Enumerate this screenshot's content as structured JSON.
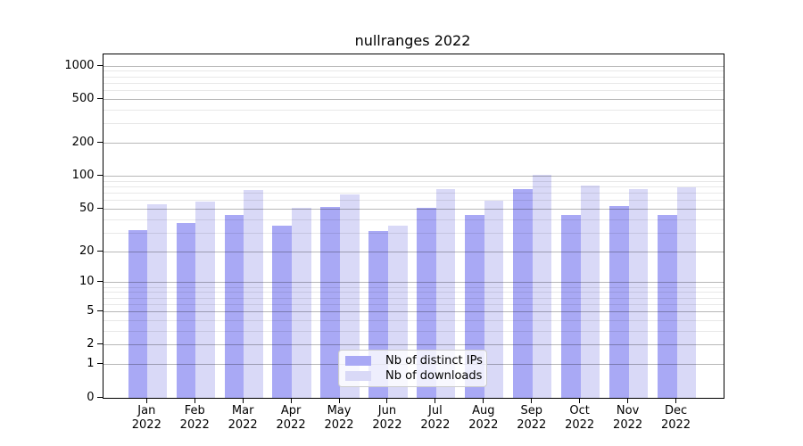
{
  "chart_data": {
    "type": "bar",
    "title": "nullranges 2022",
    "x_year": "2022",
    "categories": [
      "Jan",
      "Feb",
      "Mar",
      "Apr",
      "May",
      "Jun",
      "Jul",
      "Aug",
      "Sep",
      "Oct",
      "Nov",
      "Dec"
    ],
    "series": [
      {
        "name": "Nb of distinct IPs",
        "color": "#a9a9f5",
        "values": [
          32,
          37,
          44,
          35,
          52,
          31,
          51,
          44,
          77,
          44,
          53,
          44
        ]
      },
      {
        "name": "Nb of downloads",
        "color": "#d9d9f7",
        "values": [
          55,
          59,
          75,
          51,
          68,
          35,
          76,
          60,
          104,
          83,
          76,
          79
        ]
      }
    ],
    "yscale": "log1p",
    "ylim": [
      0,
      1290
    ],
    "y_major_ticks": [
      0,
      1,
      2,
      5,
      10,
      20,
      50,
      100,
      200,
      500,
      1000
    ],
    "y_minor_ticks": [
      3,
      4,
      6,
      7,
      8,
      9,
      30,
      40,
      60,
      70,
      80,
      90,
      300,
      400,
      600,
      700,
      800,
      900
    ],
    "grid": "both",
    "grid_on_top_of_bars": true,
    "legend_position": "lower-center",
    "colors": {
      "major_grid": "rgba(0,0,0,0.28)",
      "minor_grid": "rgba(0,0,0,0.09)",
      "spine": "#000000",
      "text": "#000000",
      "legend_border": "#cccccc",
      "legend_bg": "rgba(255,255,255,0.8)"
    }
  }
}
